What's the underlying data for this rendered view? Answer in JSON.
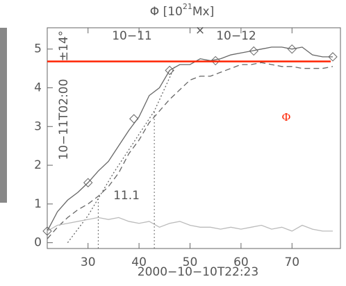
{
  "chart_data": {
    "type": "line",
    "title": {
      "text": "Φ [10",
      "superscript": "21",
      "unit": "Mx]"
    },
    "x_label": "2000−10−10T22:23",
    "xlim": [
      22,
      79.5
    ],
    "ylim": [
      -0.15,
      5.55
    ],
    "xticks": [
      30,
      40,
      50,
      60,
      70
    ],
    "yticks": [
      0,
      1,
      2,
      3,
      4,
      5
    ],
    "series": [
      {
        "color": "#666666",
        "style": "solid",
        "x": [
          22,
          24,
          26,
          28,
          30,
          32,
          34,
          36,
          38,
          40,
          42,
          44,
          46,
          48,
          50,
          52,
          54,
          56,
          58,
          60,
          62,
          64,
          66,
          68,
          70,
          72,
          74,
          76,
          78
        ],
        "values": [
          0.3,
          0.8,
          1.1,
          1.3,
          1.55,
          1.85,
          2.1,
          2.5,
          2.9,
          3.25,
          3.8,
          4.0,
          4.45,
          4.6,
          4.6,
          4.75,
          4.7,
          4.75,
          4.85,
          4.9,
          4.95,
          5.0,
          5.05,
          5.05,
          5.0,
          5.05,
          4.85,
          4.8,
          4.8
        ]
      },
      {
        "color": "#666666",
        "style": "dashed",
        "x": [
          22,
          24,
          26,
          28,
          30,
          32,
          34,
          36,
          38,
          40,
          42,
          44,
          46,
          48,
          50,
          52,
          54,
          56,
          58,
          60,
          62,
          64,
          66,
          68,
          70,
          72,
          74,
          76,
          78
        ],
        "values": [
          0.1,
          0.4,
          0.65,
          0.85,
          1.0,
          1.2,
          1.45,
          1.8,
          2.3,
          2.65,
          3.1,
          3.4,
          3.7,
          3.95,
          4.2,
          4.3,
          4.3,
          4.4,
          4.5,
          4.6,
          4.6,
          4.65,
          4.6,
          4.55,
          4.55,
          4.5,
          4.5,
          4.5,
          4.55
        ]
      },
      {
        "color": "#666666",
        "style": "dotted",
        "x": [
          26,
          30,
          35,
          40,
          43,
          47
        ],
        "values": [
          0,
          0.7,
          1.8,
          2.8,
          3.4,
          4.55
        ]
      },
      {
        "color": "#bbbbbb",
        "style": "solid",
        "x": [
          22,
          24,
          26,
          28,
          30,
          32,
          34,
          36,
          38,
          40,
          42,
          44,
          46,
          48,
          50,
          52,
          54,
          56,
          58,
          60,
          62,
          64,
          66,
          68,
          70,
          72,
          74,
          76,
          78
        ],
        "values": [
          0.3,
          0.45,
          0.5,
          0.55,
          0.6,
          0.65,
          0.6,
          0.65,
          0.55,
          0.5,
          0.55,
          0.4,
          0.5,
          0.55,
          0.45,
          0.4,
          0.4,
          0.35,
          0.4,
          0.35,
          0.4,
          0.45,
          0.35,
          0.4,
          0.3,
          0.45,
          0.35,
          0.3,
          0.3
        ]
      },
      {
        "color": "#666666",
        "style": "diamonds",
        "x": [
          22,
          30,
          39,
          46,
          55,
          62.5,
          70,
          78
        ],
        "values": [
          0.3,
          1.55,
          3.2,
          4.45,
          4.7,
          4.95,
          5.0,
          4.8
        ]
      }
    ],
    "hline": {
      "value": 4.68,
      "color": "#ff2200"
    },
    "vlines": [
      {
        "x": 32,
        "top": 1.2
      },
      {
        "x": 43,
        "top": 3.4
      }
    ],
    "annotations": [
      "10−11",
      "10−12",
      "×",
      "10−11T02:00",
      "±14°",
      "11.1",
      "Φ"
    ]
  }
}
